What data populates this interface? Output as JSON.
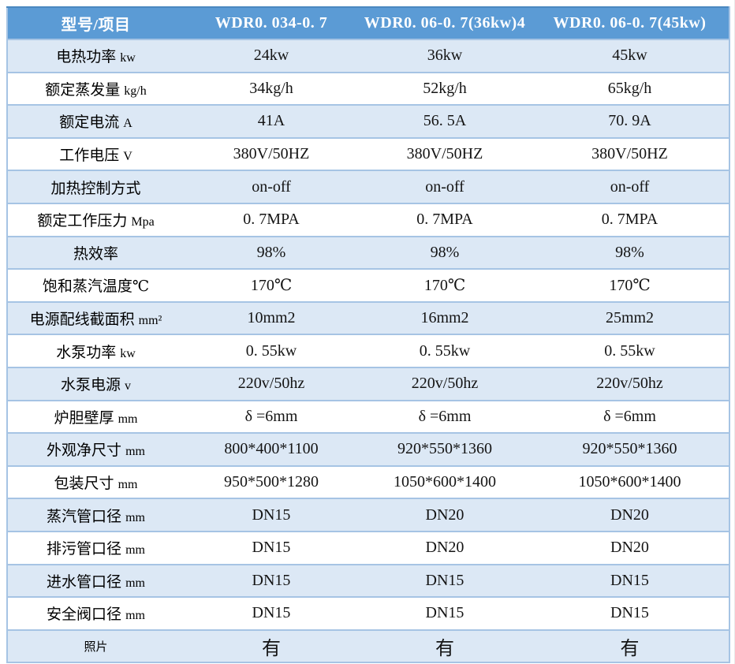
{
  "colors": {
    "header_bg": "#5B9BD5",
    "header_text": "#FFFFFF",
    "row_alt_bg": "#DCE8F5",
    "row_bg": "#FFFFFF",
    "grid_line": "#A6C4E4",
    "body_text": "#141414"
  },
  "table": {
    "columns": [
      "型号/项目",
      "WDR0. 034-0. 7",
      "WDR0. 06-0. 7(36kw)4",
      "WDR0. 06-0. 7(45kw)"
    ],
    "rows": [
      {
        "label": "电热功率",
        "unit": "kw",
        "values": [
          "24kw",
          "36kw",
          "45kw"
        ]
      },
      {
        "label": "额定蒸发量",
        "unit": "kg/h",
        "values": [
          "34kg/h",
          "52kg/h",
          "65kg/h"
        ]
      },
      {
        "label": "额定电流",
        "unit": "A",
        "values": [
          "41A",
          "56. 5A",
          "70. 9A"
        ]
      },
      {
        "label": "工作电压",
        "unit": "V",
        "values": [
          "380V/50HZ",
          "380V/50HZ",
          "380V/50HZ"
        ]
      },
      {
        "label": "加热控制方式",
        "unit": "",
        "values": [
          "on-off",
          "on-off",
          "on-off"
        ]
      },
      {
        "label": "额定工作压力",
        "unit": "Mpa",
        "values": [
          "0. 7MPA",
          "0. 7MPA",
          "0. 7MPA"
        ]
      },
      {
        "label": "热效率",
        "unit": "",
        "values": [
          "98%",
          "98%",
          "98%"
        ]
      },
      {
        "label": "饱和蒸汽温度℃",
        "unit": "",
        "values": [
          "170℃",
          "170℃",
          "170℃"
        ]
      },
      {
        "label": "电源配线截面积",
        "unit": "mm²",
        "values": [
          "10mm2",
          "16mm2",
          "25mm2"
        ]
      },
      {
        "label": "水泵功率",
        "unit": "kw",
        "values": [
          "0. 55kw",
          "0. 55kw",
          "0. 55kw"
        ]
      },
      {
        "label": "水泵电源",
        "unit": "v",
        "values": [
          "220v/50hz",
          "220v/50hz",
          "220v/50hz"
        ]
      },
      {
        "label": "炉胆壁厚",
        "unit": "mm",
        "values": [
          "δ =6mm",
          "δ =6mm",
          "δ =6mm"
        ]
      },
      {
        "label": "外观净尺寸",
        "unit": "mm",
        "values": [
          "800*400*1100",
          "920*550*1360",
          "920*550*1360"
        ]
      },
      {
        "label": "包装尺寸",
        "unit": "mm",
        "values": [
          "950*500*1280",
          "1050*600*1400",
          "1050*600*1400"
        ]
      },
      {
        "label": "蒸汽管口径",
        "unit": "mm",
        "values": [
          "DN15",
          "DN20",
          "DN20"
        ]
      },
      {
        "label": "排污管口径",
        "unit": "mm",
        "values": [
          "DN15",
          "DN20",
          "DN20"
        ]
      },
      {
        "label": "进水管口径",
        "unit": "mm",
        "values": [
          "DN15",
          "DN15",
          "DN15"
        ]
      },
      {
        "label": "安全阀口径",
        "unit": "mm",
        "values": [
          "DN15",
          "DN15",
          "DN15"
        ]
      },
      {
        "label": "照片",
        "unit": "",
        "values": [
          "有",
          "有",
          "有"
        ],
        "variant": "photo"
      }
    ]
  }
}
